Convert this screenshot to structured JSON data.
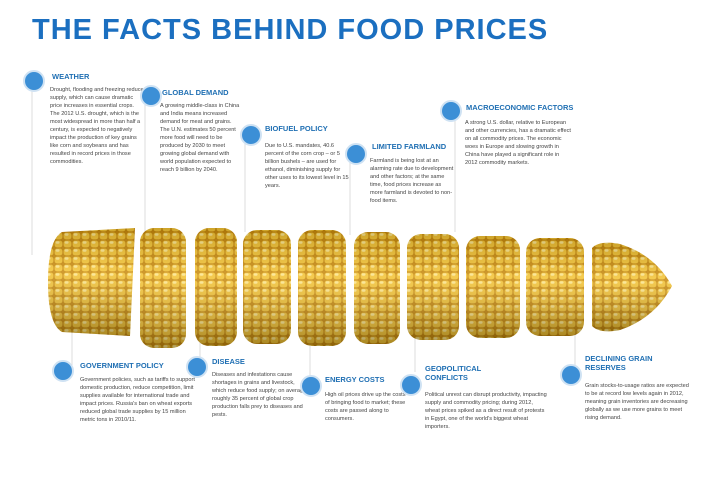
{
  "header": {
    "title": "THE FACTS BEHIND FOOD PRICES"
  },
  "factors": [
    {
      "title": "WEATHER",
      "text": "Drought, flooding and freezing reduce supply, which can cause dramatic price increases in essential crops. The 2012 U.S. drought, which is the most widespread in more than half a century, is expected to negatively impact the production of key grains like corn and soybeans and has resulted in record prices in those commodities."
    },
    {
      "title": "GLOBAL DEMAND",
      "text": "A growing middle-class in China and India means increased demand for meat and grains. The U.N. estimates 50 percent more food will need to be produced by 2030 to meet growing global demand with world population expected to reach 9 billion by 2040."
    },
    {
      "title": "BIOFUEL POLICY",
      "text": "Due to U.S. mandates, 40.6 percent of the corn crop – or 5 billion bushels – are used for ethanol, diminishing supply for other uses to its lowest level in 15 years."
    },
    {
      "title": "LIMITED FARMLAND",
      "text": "Farmland is being lost at an alarming rate due to development and other factors; at the same time, food prices increase as more farmland is devoted to non-food items."
    },
    {
      "title": "MACROECONOMIC FACTORS",
      "text": "A strong U.S. dollar, relative to European and other currencies, has a dramatic effect on all commodity prices. The economic woes in Europe and slowing growth in China have played a significant role in 2012 commodity markets."
    },
    {
      "title": "GOVERNMENT POLICY",
      "text": "Government policies, such as tariffs to support domestic production, reduce competition, limit supplies available for international trade and impact prices. Russia's ban on wheat exports reduced global trade supplies by 15 million metric tons in 2010/11."
    },
    {
      "title": "DISEASE",
      "text": "Diseases and infestations cause shortages in grains and livestock, which reduce food supply; on average, roughly 35 percent of global crop production falls prey to diseases and pests."
    },
    {
      "title": "ENERGY COSTS",
      "text": "High oil prices drive up the costs of bringing food to market; these costs are passed along to consumers."
    },
    {
      "title": "GEOPOLITICAL CONFLICTS",
      "text": "Political unrest can disrupt productivity, impacting supply and commodity pricing; during 2012, wheat prices spiked as a direct result of protests in Egypt, one of the world's biggest wheat importers."
    },
    {
      "title": "DECLINING GRAIN RESERVES",
      "text": "Grain stocks-to-usage ratios are expected to be at record low levels again in 2012, meaning grain inventories are decreasing globally as we use more grains to meet rising demand."
    }
  ]
}
